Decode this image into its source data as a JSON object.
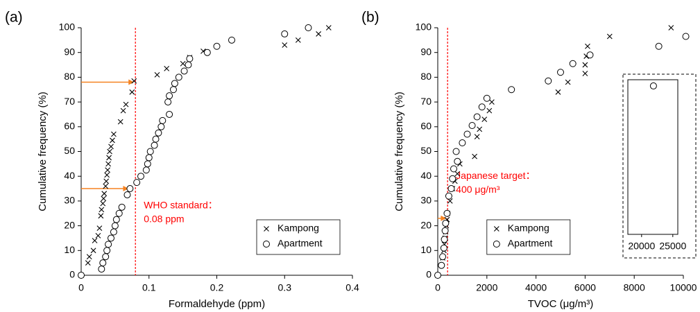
{
  "chart_data": [
    {
      "type": "scatter",
      "panel_label": "(a)",
      "x_label": "Formaldehyde (ppm)",
      "y_label": "Cumulative frequency (%)",
      "xlim": [
        0,
        0.4
      ],
      "xticks": [
        0,
        0.1,
        0.2,
        0.3,
        0.4
      ],
      "ylim": [
        0,
        100
      ],
      "yticks": [
        0,
        10,
        20,
        30,
        40,
        50,
        60,
        70,
        80,
        90,
        100
      ],
      "legend": "lower right",
      "series": [
        {
          "name": "Kampong",
          "marker": "x",
          "color": "#000000",
          "x": [
            0,
            0.01,
            0.012,
            0.018,
            0.02,
            0.025,
            0.027,
            0.029,
            0.03,
            0.032,
            0.033,
            0.034,
            0.036,
            0.037,
            0.038,
            0.039,
            0.04,
            0.041,
            0.042,
            0.044,
            0.046,
            0.048,
            0.058,
            0.062,
            0.066,
            0.075,
            0.078,
            0.112,
            0.126,
            0.15,
            0.16,
            0.18,
            0.3,
            0.32,
            0.35,
            0.365
          ],
          "values": [
            0,
            5,
            7.5,
            10,
            14,
            16,
            19,
            24,
            26.5,
            29,
            31,
            33,
            36,
            38,
            40.5,
            42.5,
            45,
            47.5,
            50,
            52,
            54.5,
            57,
            62,
            66.5,
            69,
            74,
            78.5,
            81,
            83.5,
            85.5,
            88,
            90.5,
            93,
            95,
            97.5,
            100
          ]
        },
        {
          "name": "Apartment",
          "marker": "circle",
          "color": "#000000",
          "x": [
            0,
            0.03,
            0.032,
            0.036,
            0.038,
            0.04,
            0.044,
            0.048,
            0.05,
            0.052,
            0.056,
            0.06,
            0.068,
            0.072,
            0.082,
            0.088,
            0.096,
            0.098,
            0.1,
            0.102,
            0.108,
            0.11,
            0.114,
            0.118,
            0.12,
            0.13,
            0.128,
            0.13,
            0.136,
            0.138,
            0.144,
            0.152,
            0.158,
            0.16,
            0.186,
            0.2,
            0.222,
            0.3,
            0.335
          ],
          "values": [
            0,
            2.5,
            5,
            7.5,
            10,
            12.5,
            15,
            17.5,
            20,
            22.5,
            25,
            27.5,
            32.5,
            35,
            37.5,
            40,
            42.5,
            45,
            47.5,
            50,
            52.5,
            55,
            57.5,
            60,
            62.5,
            65,
            70,
            72.5,
            75,
            77.5,
            80,
            82.5,
            85,
            87.5,
            90,
            92.5,
            95,
            97.5,
            100
          ]
        }
      ],
      "reference_line": {
        "x": 0.08,
        "color": "#ff0000",
        "text": [
          "WHO standard：",
          "0.08 ppm"
        ]
      },
      "arrows": {
        "color": "#f58220",
        "x": [
          0.078,
          0.07
        ],
        "y": [
          78,
          35
        ]
      }
    },
    {
      "type": "scatter",
      "panel_label": "(b)",
      "x_label": "TVOC (μg/m³)",
      "y_label": "Cumulative frequency (%)",
      "xlim": [
        0,
        10000
      ],
      "xticks": [
        0,
        2000,
        4000,
        6000,
        8000,
        10000
      ],
      "ylim": [
        0,
        100
      ],
      "yticks": [
        0,
        10,
        20,
        30,
        40,
        50,
        60,
        70,
        80,
        90,
        100
      ],
      "legend": "lower center",
      "series": [
        {
          "name": "Kampong",
          "marker": "x",
          "color": "#000000",
          "x": [
            0,
            150,
            200,
            250,
            270,
            300,
            320,
            350,
            380,
            400,
            500,
            600,
            700,
            800,
            900,
            1500,
            1600,
            1700,
            1900,
            2100,
            2200,
            4900,
            5300,
            6000,
            6000,
            6050,
            6100,
            7000,
            9500
          ],
          "values": [
            0,
            4,
            7,
            10,
            12.5,
            15,
            17.5,
            20,
            22.5,
            25,
            30,
            35,
            38,
            41,
            45,
            48,
            56,
            59,
            63,
            66.5,
            70,
            74,
            78,
            81.5,
            85,
            88.5,
            92.5,
            96.5,
            100
          ]
        },
        {
          "name": "Apartment",
          "marker": "circle",
          "color": "#000000",
          "x": [
            0,
            150,
            200,
            250,
            270,
            300,
            320,
            380,
            450,
            550,
            600,
            650,
            800,
            750,
            1000,
            1200,
            1400,
            1600,
            1800,
            2000,
            3000,
            4500,
            5000,
            5500,
            6200,
            9000,
            10100
          ],
          "values": [
            0,
            4,
            7.5,
            11,
            14.5,
            18,
            21,
            25,
            32,
            35,
            39,
            43,
            46,
            50,
            53.5,
            57,
            60.5,
            64,
            68,
            71.5,
            75,
            78.5,
            82,
            85.5,
            89,
            92.5,
            96.5
          ]
        }
      ],
      "reference_line": {
        "x": 400,
        "color": "#ff0000",
        "text": [
          "Japanese target：",
          "400 μg/m³"
        ]
      },
      "arrows": {
        "color": "#f58220",
        "x": [
          350
        ],
        "y": [
          23
        ]
      },
      "inset": {
        "xlim": [
          17800,
          25800
        ],
        "xticks": [
          20000,
          25000
        ],
        "ylim": [
          16.5,
          79
        ],
        "x": [
          21900
        ],
        "values": [
          76.5
        ]
      }
    }
  ]
}
